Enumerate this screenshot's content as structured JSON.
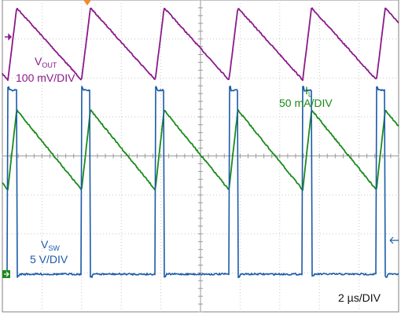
{
  "chart_data": {
    "type": "line",
    "title": "",
    "xlabel": "",
    "ylabel": "",
    "grid": true,
    "grid_divisions": {
      "x": 10,
      "y": 8
    },
    "time_scale": {
      "text": "2 µs/DIV",
      "value": 2,
      "unit": "µs/DIV"
    },
    "x": [
      0,
      2,
      4,
      6,
      8,
      10,
      12,
      14,
      16,
      18,
      20
    ],
    "x_unit": "µs",
    "period_divisions": 1.86,
    "series": [
      {
        "name": "VOUT",
        "label_main": "V",
        "label_sub": "OUT",
        "scale_text": "100 mV/DIV",
        "color": "#8a1a8a",
        "shape": "sawtooth-rising",
        "peak_to_peak_divisions": 1.85,
        "peak_to_peak": 185,
        "peak_to_peak_unit": "mV"
      },
      {
        "name": "IL",
        "label_main": "I",
        "label_sub": "L",
        "scale_text": "50 mA/DIV",
        "color": "#1a8a1a",
        "shape": "sawtooth-falling",
        "peak_to_peak_divisions": 2.05,
        "peak_to_peak": 102,
        "peak_to_peak_unit": "mA"
      },
      {
        "name": "VSW",
        "label_main": "V",
        "label_sub": "SW",
        "scale_text": "5 V/DIV",
        "color": "#1a5aa8",
        "shape": "pulse",
        "high_divisions": 4.8,
        "high": 24,
        "high_unit": "V",
        "duty_cycle": 0.12
      }
    ],
    "markers": {
      "trigger_color": "#f08a30",
      "ground_color": "#1a8a1a"
    }
  }
}
